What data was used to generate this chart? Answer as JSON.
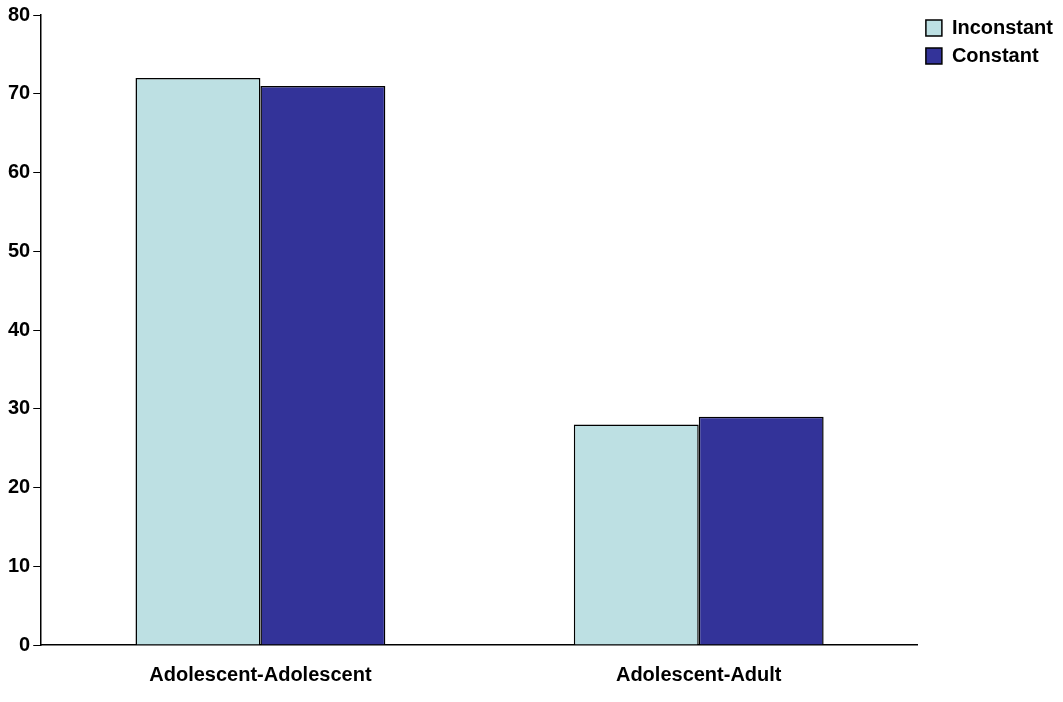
{
  "chart_data": {
    "type": "bar",
    "categories": [
      "Adolescent-Adolescent",
      "Adolescent-Adult"
    ],
    "series": [
      {
        "name": "Inconstant",
        "color": "#bde0e3",
        "values": [
          72,
          28
        ]
      },
      {
        "name": "Constant",
        "color": "#333399",
        "values": [
          71,
          29
        ]
      }
    ],
    "ylim": [
      0,
      80
    ],
    "yticks": [
      0,
      10,
      20,
      30,
      40,
      50,
      60,
      70,
      80
    ],
    "grid": false,
    "legend": "top right"
  }
}
